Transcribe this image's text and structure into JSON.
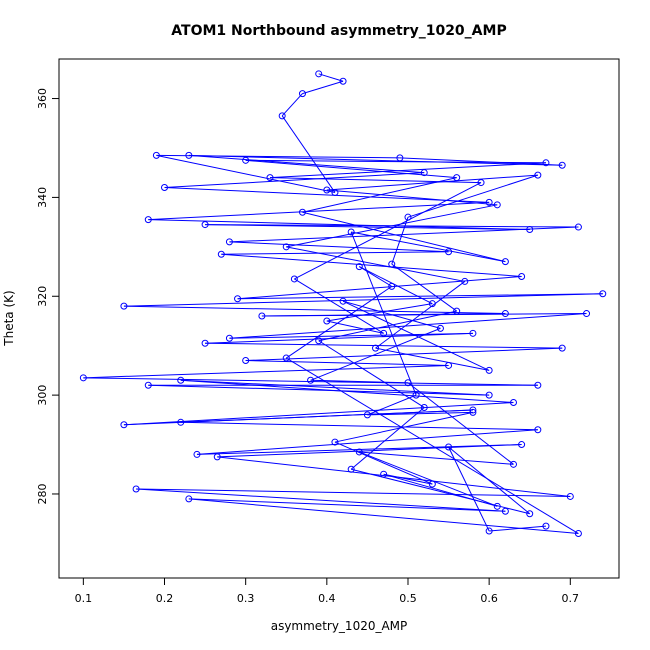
{
  "chart_data": {
    "type": "line",
    "title": "ATOM1 Northbound asymmetry_1020_AMP",
    "xlabel": "asymmetry_1020_AMP",
    "ylabel": "Theta (K)",
    "xlim": [
      0.07,
      0.76
    ],
    "ylim": [
      263,
      368
    ],
    "x_ticks": [
      0.1,
      0.2,
      0.3,
      0.4,
      0.5,
      0.6,
      0.7
    ],
    "x_tick_labels": [
      "0.1",
      "0.2",
      "0.3",
      "0.4",
      "0.5",
      "0.6",
      "0.7"
    ],
    "y_ticks": [
      280,
      300,
      320,
      340,
      360
    ],
    "y_tick_labels": [
      "280",
      "300",
      "320",
      "340",
      "360"
    ],
    "grid": false,
    "marker": "open-circle",
    "series_color": "#0000ff",
    "series": [
      {
        "points": [
          [
            0.39,
            365.0
          ],
          [
            0.42,
            363.5
          ],
          [
            0.37,
            361.0
          ],
          [
            0.345,
            356.5
          ],
          [
            0.41,
            341.0
          ],
          [
            0.19,
            348.5
          ],
          [
            0.49,
            348.0
          ],
          [
            0.69,
            346.5
          ],
          [
            0.23,
            348.5
          ],
          [
            0.52,
            345.0
          ],
          [
            0.2,
            342.0
          ],
          [
            0.6,
            339.0
          ],
          [
            0.18,
            335.5
          ],
          [
            0.65,
            333.5
          ],
          [
            0.25,
            334.5
          ],
          [
            0.71,
            334.0
          ],
          [
            0.28,
            331.0
          ],
          [
            0.55,
            329.0
          ],
          [
            0.27,
            328.5
          ],
          [
            0.64,
            324.0
          ],
          [
            0.29,
            319.5
          ],
          [
            0.74,
            320.5
          ],
          [
            0.15,
            318.0
          ],
          [
            0.62,
            316.5
          ],
          [
            0.32,
            316.0
          ],
          [
            0.72,
            316.5
          ],
          [
            0.28,
            311.5
          ],
          [
            0.58,
            312.5
          ],
          [
            0.25,
            310.5
          ],
          [
            0.69,
            309.5
          ],
          [
            0.3,
            307.0
          ],
          [
            0.55,
            306.0
          ],
          [
            0.1,
            303.5
          ],
          [
            0.66,
            302.0
          ],
          [
            0.18,
            302.0
          ],
          [
            0.6,
            300.0
          ],
          [
            0.22,
            303.0
          ],
          [
            0.63,
            298.5
          ],
          [
            0.15,
            294.0
          ],
          [
            0.58,
            297.0
          ],
          [
            0.22,
            294.5
          ],
          [
            0.66,
            293.0
          ],
          [
            0.24,
            288.0
          ],
          [
            0.64,
            290.0
          ],
          [
            0.265,
            287.5
          ],
          [
            0.7,
            279.5
          ],
          [
            0.165,
            281.0
          ],
          [
            0.62,
            276.5
          ],
          [
            0.23,
            279.0
          ],
          [
            0.71,
            272.0
          ],
          [
            0.35,
            307.5
          ],
          [
            0.48,
            322.0
          ],
          [
            0.44,
            326.0
          ],
          [
            0.53,
            318.5
          ],
          [
            0.4,
            315.0
          ],
          [
            0.47,
            312.5
          ],
          [
            0.36,
            323.5
          ],
          [
            0.59,
            343.0
          ],
          [
            0.33,
            344.0
          ],
          [
            0.67,
            347.0
          ],
          [
            0.3,
            347.5
          ],
          [
            0.56,
            344.0
          ],
          [
            0.37,
            337.0
          ],
          [
            0.62,
            327.0
          ],
          [
            0.43,
            333.0
          ],
          [
            0.51,
            300.0
          ],
          [
            0.45,
            296.0
          ],
          [
            0.58,
            296.5
          ],
          [
            0.41,
            290.5
          ],
          [
            0.53,
            282.0
          ],
          [
            0.47,
            284.0
          ],
          [
            0.61,
            277.5
          ],
          [
            0.44,
            288.5
          ],
          [
            0.63,
            286.0
          ],
          [
            0.5,
            302.5
          ],
          [
            0.38,
            303.0
          ],
          [
            0.54,
            313.5
          ],
          [
            0.42,
            319.0
          ],
          [
            0.6,
            305.0
          ],
          [
            0.46,
            309.5
          ],
          [
            0.57,
            323.0
          ],
          [
            0.35,
            330.0
          ],
          [
            0.61,
            338.5
          ],
          [
            0.4,
            341.5
          ],
          [
            0.66,
            344.5
          ],
          [
            0.5,
            336.0
          ],
          [
            0.48,
            326.5
          ],
          [
            0.56,
            317.0
          ],
          [
            0.39,
            311.0
          ],
          [
            0.52,
            297.5
          ],
          [
            0.43,
            285.0
          ],
          [
            0.65,
            276.0
          ],
          [
            0.55,
            289.5
          ],
          [
            0.6,
            272.5
          ],
          [
            0.67,
            273.5
          ]
        ]
      }
    ]
  }
}
